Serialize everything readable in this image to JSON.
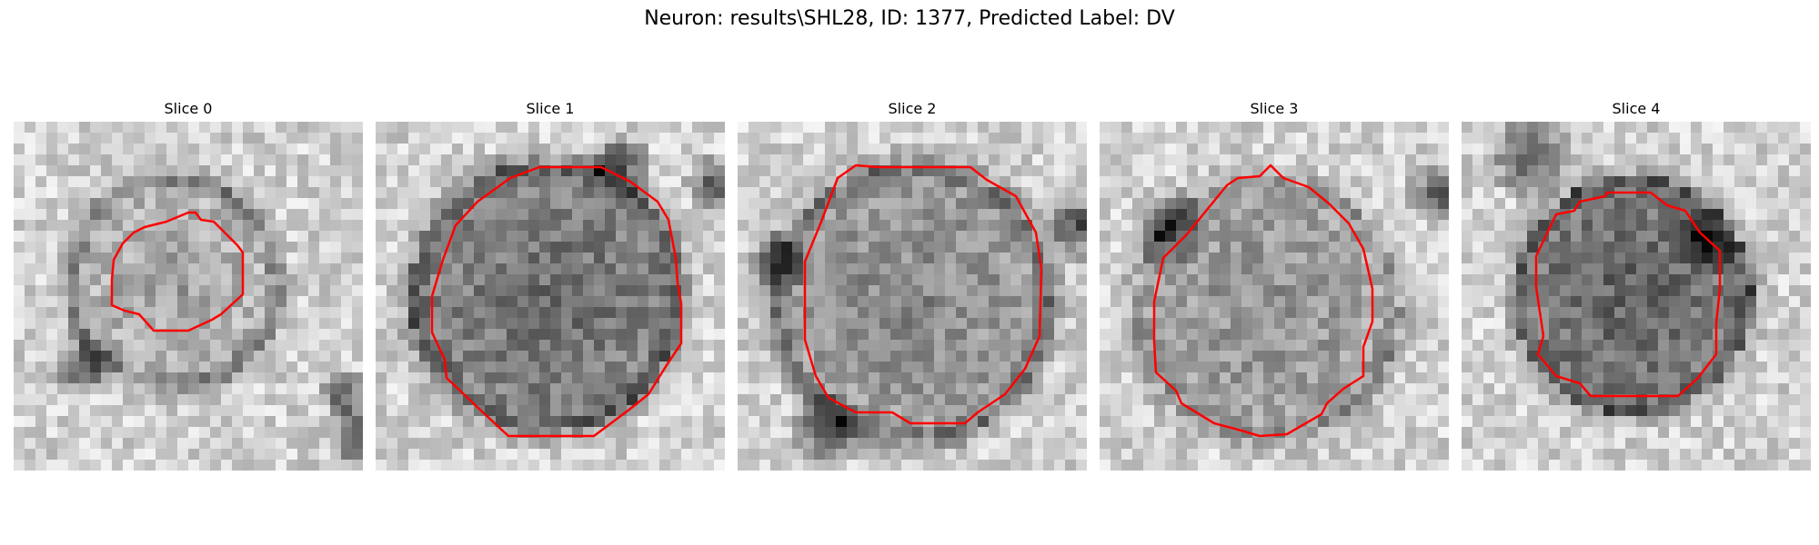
{
  "figure": {
    "title": "Neuron: results\\SHL28, ID: 1377, Predicted Label: DV"
  },
  "slices": [
    {
      "title": "Slice 0"
    },
    {
      "title": "Slice 1"
    },
    {
      "title": "Slice 2"
    },
    {
      "title": "Slice 3"
    },
    {
      "title": "Slice 4"
    }
  ],
  "colors": {
    "contour": "#ff0000",
    "background": "#ffffff"
  },
  "colormap": "grayscale"
}
